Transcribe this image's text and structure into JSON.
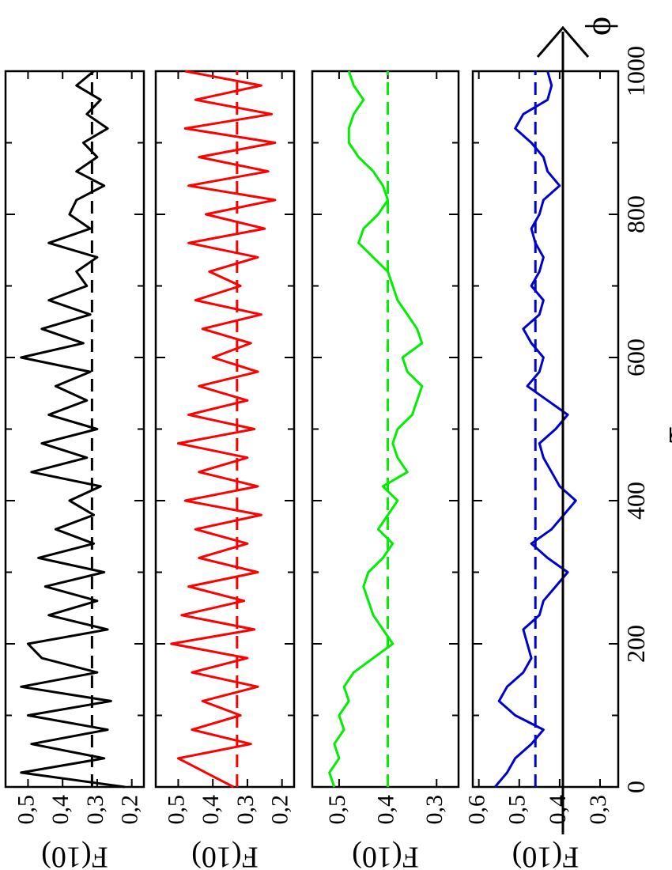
{
  "figure": {
    "x_label": "τ",
    "arrow_label": "ϕ",
    "x_ticks": [
      0,
      200,
      400,
      600,
      800,
      1000
    ]
  },
  "chart_data": [
    {
      "type": "line",
      "xlabel": "τ",
      "ylabel": "F(10)",
      "xlim": [
        0,
        1000
      ],
      "ylim": [
        0.165,
        0.565
      ],
      "yticks": [
        "0,2",
        "0,3",
        "0,4",
        "0,5"
      ],
      "ytick_values": [
        0.2,
        0.3,
        0.4,
        0.5
      ],
      "color": "#000000",
      "mean": 0.315,
      "x": [
        0,
        20,
        40,
        60,
        80,
        100,
        120,
        140,
        160,
        180,
        200,
        220,
        240,
        260,
        280,
        300,
        320,
        340,
        360,
        380,
        400,
        420,
        440,
        460,
        480,
        500,
        520,
        540,
        560,
        580,
        600,
        620,
        640,
        660,
        680,
        700,
        720,
        740,
        760,
        780,
        800,
        820,
        840,
        860,
        880,
        900,
        920,
        940,
        960,
        980,
        1000
      ],
      "values": [
        0.22,
        0.52,
        0.28,
        0.49,
        0.27,
        0.5,
        0.26,
        0.52,
        0.3,
        0.46,
        0.5,
        0.27,
        0.44,
        0.3,
        0.45,
        0.28,
        0.47,
        0.31,
        0.42,
        0.31,
        0.38,
        0.29,
        0.49,
        0.33,
        0.46,
        0.3,
        0.44,
        0.33,
        0.42,
        0.32,
        0.52,
        0.34,
        0.46,
        0.32,
        0.44,
        0.33,
        0.36,
        0.3,
        0.44,
        0.32,
        0.38,
        0.36,
        0.28,
        0.36,
        0.3,
        0.34,
        0.27,
        0.33,
        0.29,
        0.36,
        0.31
      ]
    },
    {
      "type": "line",
      "xlabel": "τ",
      "ylabel": "F(10)",
      "xlim": [
        0,
        1000
      ],
      "ylim": [
        0.165,
        0.565
      ],
      "yticks": [
        "0,2",
        "0,3",
        "0,4",
        "0,5"
      ],
      "ytick_values": [
        0.2,
        0.3,
        0.4,
        0.5
      ],
      "color": "#ff0000",
      "mean": 0.33,
      "x": [
        0,
        20,
        40,
        60,
        80,
        100,
        120,
        140,
        160,
        180,
        200,
        220,
        240,
        260,
        280,
        300,
        320,
        340,
        360,
        380,
        400,
        420,
        440,
        460,
        480,
        500,
        520,
        540,
        560,
        580,
        600,
        620,
        640,
        660,
        680,
        700,
        720,
        740,
        760,
        780,
        800,
        820,
        840,
        860,
        880,
        900,
        920,
        940,
        960,
        980,
        1000
      ],
      "values": [
        0.34,
        0.42,
        0.5,
        0.29,
        0.46,
        0.32,
        0.43,
        0.27,
        0.46,
        0.3,
        0.52,
        0.28,
        0.49,
        0.31,
        0.47,
        0.27,
        0.44,
        0.3,
        0.45,
        0.26,
        0.48,
        0.27,
        0.44,
        0.3,
        0.5,
        0.28,
        0.47,
        0.3,
        0.44,
        0.27,
        0.4,
        0.29,
        0.43,
        0.26,
        0.45,
        0.32,
        0.41,
        0.27,
        0.47,
        0.25,
        0.42,
        0.22,
        0.47,
        0.24,
        0.44,
        0.22,
        0.48,
        0.23,
        0.45,
        0.26,
        0.48
      ]
    },
    {
      "type": "line",
      "xlabel": "τ",
      "ylabel": "F(10)",
      "xlim": [
        0,
        1000
      ],
      "ylim": [
        0.255,
        0.555
      ],
      "yticks": [
        "0,3",
        "0,4",
        "0,5"
      ],
      "ytick_values": [
        0.3,
        0.4,
        0.5
      ],
      "color": "#00ee00",
      "mean": 0.4,
      "x": [
        0,
        20,
        40,
        60,
        80,
        100,
        120,
        140,
        160,
        180,
        200,
        220,
        240,
        260,
        280,
        300,
        320,
        340,
        360,
        380,
        400,
        420,
        440,
        460,
        480,
        500,
        520,
        540,
        560,
        580,
        600,
        620,
        640,
        660,
        680,
        700,
        720,
        740,
        760,
        780,
        800,
        820,
        840,
        860,
        880,
        900,
        920,
        940,
        960,
        980,
        1000
      ],
      "values": [
        0.51,
        0.52,
        0.5,
        0.51,
        0.49,
        0.5,
        0.48,
        0.49,
        0.47,
        0.43,
        0.39,
        0.41,
        0.43,
        0.44,
        0.45,
        0.44,
        0.41,
        0.39,
        0.42,
        0.4,
        0.38,
        0.41,
        0.36,
        0.38,
        0.39,
        0.38,
        0.35,
        0.34,
        0.33,
        0.36,
        0.37,
        0.33,
        0.34,
        0.36,
        0.38,
        0.39,
        0.4,
        0.43,
        0.46,
        0.45,
        0.42,
        0.4,
        0.41,
        0.43,
        0.46,
        0.48,
        0.48,
        0.47,
        0.45,
        0.47,
        0.48
      ]
    },
    {
      "type": "line",
      "xlabel": "τ",
      "ylabel": "F(10)",
      "xlim": [
        0,
        1000
      ],
      "ylim": [
        0.255,
        0.615
      ],
      "yticks": [
        "0,3",
        "0,4",
        "0,5",
        "0,6"
      ],
      "ytick_values": [
        0.3,
        0.4,
        0.5,
        0.6
      ],
      "color": "#0000cc",
      "mean": 0.46,
      "x": [
        0,
        20,
        40,
        60,
        80,
        100,
        120,
        140,
        160,
        180,
        200,
        220,
        240,
        260,
        280,
        300,
        320,
        340,
        360,
        380,
        400,
        420,
        440,
        460,
        480,
        500,
        520,
        540,
        560,
        580,
        600,
        620,
        640,
        660,
        680,
        700,
        720,
        740,
        760,
        780,
        800,
        820,
        840,
        860,
        880,
        900,
        920,
        940,
        960,
        980,
        1000
      ],
      "values": [
        0.56,
        0.53,
        0.51,
        0.47,
        0.44,
        0.51,
        0.55,
        0.53,
        0.49,
        0.47,
        0.48,
        0.49,
        0.45,
        0.44,
        0.41,
        0.38,
        0.43,
        0.47,
        0.42,
        0.39,
        0.36,
        0.4,
        0.42,
        0.44,
        0.45,
        0.41,
        0.38,
        0.43,
        0.48,
        0.45,
        0.44,
        0.47,
        0.49,
        0.45,
        0.44,
        0.47,
        0.45,
        0.44,
        0.46,
        0.47,
        0.45,
        0.44,
        0.4,
        0.43,
        0.44,
        0.47,
        0.51,
        0.49,
        0.43,
        0.42,
        0.43
      ]
    }
  ]
}
